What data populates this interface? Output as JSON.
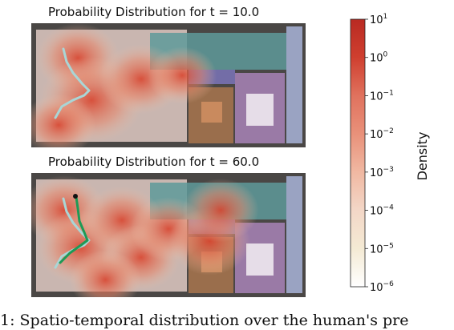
{
  "chart_data": [
    {
      "type": "heatmap",
      "title": "Probability Distribution for t = 10.0",
      "trajectory": {
        "colors": [
          "#a9d6d6"
        ]
      },
      "hotspots": [
        {
          "x": 0.17,
          "y": 0.28,
          "density": 0.6
        },
        {
          "x": 0.22,
          "y": 0.62,
          "density": 1.0
        },
        {
          "x": 0.4,
          "y": 0.45,
          "density": 0.6
        },
        {
          "x": 0.55,
          "y": 0.42,
          "density": 0.3
        },
        {
          "x": 0.1,
          "y": 0.82,
          "density": 0.4
        }
      ]
    },
    {
      "type": "heatmap",
      "title": "Probability Distribution for t = 60.0",
      "trajectory": {
        "colors": [
          "#a9d6d6",
          "#1e9a56"
        ]
      },
      "hotspots": [
        {
          "x": 0.12,
          "y": 0.3,
          "density": 0.6
        },
        {
          "x": 0.18,
          "y": 0.6,
          "density": 0.7
        },
        {
          "x": 0.33,
          "y": 0.38,
          "density": 0.55
        },
        {
          "x": 0.4,
          "y": 0.68,
          "density": 0.5
        },
        {
          "x": 0.5,
          "y": 0.45,
          "density": 0.45
        },
        {
          "x": 0.65,
          "y": 0.55,
          "density": 0.55
        },
        {
          "x": 0.69,
          "y": 0.3,
          "density": 0.45
        },
        {
          "x": 0.27,
          "y": 0.86,
          "density": 0.35
        }
      ]
    }
  ],
  "colorbar": {
    "label": "Density",
    "scale": "log",
    "range": [
      1e-06,
      10
    ],
    "ticks": [
      {
        "base": "10",
        "exp": "1"
      },
      {
        "base": "10",
        "exp": "0"
      },
      {
        "base": "10",
        "exp": "−1"
      },
      {
        "base": "10",
        "exp": "−2"
      },
      {
        "base": "10",
        "exp": "−3"
      },
      {
        "base": "10",
        "exp": "−4"
      },
      {
        "base": "10",
        "exp": "−5"
      },
      {
        "base": "10",
        "exp": "−6"
      }
    ],
    "colors": [
      "#ffffff",
      "#f4ead4",
      "#f3d7c7",
      "#f0b8a2",
      "#e9917a",
      "#e0725e",
      "#cf3f2f",
      "#b92a22"
    ]
  },
  "caption": "1: Spatio-temporal distribution over the human's pre"
}
